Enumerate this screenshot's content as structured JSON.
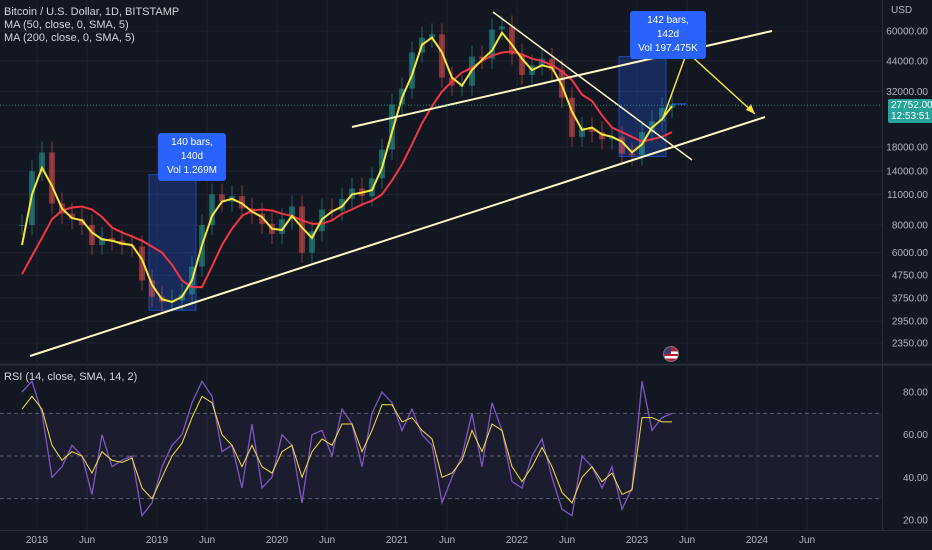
{
  "header": {
    "title": "Bitcoin / U.S. Dollar, 1D, BITSTAMP",
    "ma50": "MA (50, close, 0, SMA, 5)",
    "ma200": "MA (200, close, 0, SMA, 5)",
    "rsi": "RSI (14, close, SMA, 14, 2)"
  },
  "axis": {
    "currency": "USD",
    "price_ticks": [
      "60000.00",
      "44000.00",
      "32000.00",
      "18000.00",
      "14000.00",
      "11000.00",
      "8000.00",
      "6000.00",
      "4750.00",
      "3750.00",
      "2950.00",
      "2350.00"
    ],
    "rsi_ticks": [
      "80.00",
      "60.00",
      "40.00",
      "20.00"
    ],
    "time_ticks": [
      "2018",
      "Jun",
      "2019",
      "Jun",
      "2020",
      "Jun",
      "2021",
      "Jun",
      "2022",
      "Jun",
      "2023",
      "Jun",
      "2024",
      "Jun"
    ]
  },
  "badges": [
    {
      "bars": "140 bars, 140d",
      "vol": "Vol 1.269M"
    },
    {
      "bars": "142 bars, 142d",
      "vol": "Vol 197.475K"
    }
  ],
  "price_tag": {
    "price": "27752.00",
    "countdown": "12:53:51",
    "last_bg": "#26a69a"
  },
  "colors": {
    "background": "#131722",
    "candle_up": "#26a69a",
    "candle_down": "#ef5350",
    "ma50": "#f7e53b",
    "ma200": "#f23645",
    "trendline": "#fff8c4",
    "range_box": "#2962ff",
    "rsi_line": "#7e57c2",
    "rsi_ma": "#f7e53b"
  },
  "chart_data": [
    {
      "type": "line",
      "title": "Bitcoin / U.S. Dollar, 1D, BITSTAMP",
      "y_scale": "log",
      "ylim": [
        2000,
        80000
      ],
      "x": [
        "2017-11",
        "2017-12",
        "2018-01",
        "2018-02",
        "2018-03",
        "2018-04",
        "2018-05",
        "2018-06",
        "2018-07",
        "2018-08",
        "2018-09",
        "2018-10",
        "2018-11",
        "2018-12",
        "2019-01",
        "2019-02",
        "2019-03",
        "2019-04",
        "2019-05",
        "2019-06",
        "2019-07",
        "2019-08",
        "2019-09",
        "2019-10",
        "2019-11",
        "2019-12",
        "2020-01",
        "2020-02",
        "2020-03",
        "2020-04",
        "2020-05",
        "2020-06",
        "2020-07",
        "2020-08",
        "2020-09",
        "2020-10",
        "2020-11",
        "2020-12",
        "2021-01",
        "2021-02",
        "2021-03",
        "2021-04",
        "2021-05",
        "2021-06",
        "2021-07",
        "2021-08",
        "2021-09",
        "2021-10",
        "2021-11",
        "2021-12",
        "2022-01",
        "2022-02",
        "2022-03",
        "2022-04",
        "2022-05",
        "2022-06",
        "2022-07",
        "2022-08",
        "2022-09",
        "2022-10",
        "2022-11",
        "2022-12",
        "2023-01",
        "2023-02",
        "2023-03",
        "2023-04"
      ],
      "series": [
        {
          "name": "Bitcoin / U.S. Dollar",
          "values": [
            8000,
            14000,
            17000,
            10000,
            9000,
            8500,
            8000,
            6500,
            7000,
            6800,
            6500,
            6400,
            4500,
            3800,
            3600,
            3650,
            3900,
            5200,
            8000,
            11000,
            10200,
            10800,
            9500,
            9000,
            8100,
            7300,
            8500,
            9700,
            6000,
            7500,
            9400,
            9300,
            10500,
            11700,
            10800,
            13000,
            17500,
            28000,
            33000,
            48000,
            56000,
            58000,
            37000,
            34000,
            34000,
            46000,
            45000,
            61000,
            63000,
            47000,
            38000,
            42000,
            45000,
            40000,
            30000,
            20000,
            22000,
            21000,
            19500,
            20000,
            16800,
            16500,
            21000,
            23500,
            27000,
            28000
          ]
        },
        {
          "name": "MA (50, close, 0, SMA, 5)",
          "values": [
            6500,
            11000,
            14500,
            12000,
            9500,
            8600,
            8400,
            7400,
            6900,
            6800,
            6600,
            6500,
            5600,
            4300,
            3700,
            3600,
            3800,
            4500,
            6500,
            8800,
            10200,
            10500,
            10000,
            9200,
            8700,
            7700,
            7600,
            8800,
            7800,
            7000,
            8500,
            9200,
            9700,
            11000,
            11200,
            11500,
            14500,
            21000,
            30000,
            38000,
            52000,
            56000,
            48000,
            37000,
            34000,
            40000,
            44500,
            49000,
            59000,
            52000,
            45000,
            40000,
            42000,
            41000,
            34000,
            26000,
            21500,
            22000,
            20500,
            20000,
            19000,
            17000,
            18500,
            22000,
            24000,
            27500
          ]
        },
        {
          "name": "MA (200, close, 0, SMA, 5)",
          "values": [
            4800,
            5800,
            7000,
            8500,
            9300,
            9600,
            9700,
            9400,
            8700,
            7800,
            7400,
            7100,
            6800,
            6400,
            6000,
            5300,
            4500,
            4200,
            4200,
            5200,
            6500,
            7700,
            8800,
            9300,
            9400,
            9300,
            9000,
            8800,
            8400,
            8100,
            8100,
            8400,
            9000,
            9400,
            9900,
            10300,
            11000,
            12700,
            15000,
            18500,
            23000,
            27500,
            32000,
            35500,
            39000,
            41000,
            44000,
            46500,
            48000,
            48500,
            47000,
            45000,
            44000,
            42000,
            39500,
            36000,
            31000,
            29000,
            25000,
            22000,
            21000,
            20000,
            19000,
            19500,
            20000,
            21000
          ]
        }
      ]
    },
    {
      "type": "line",
      "title": "RSI (14, close, SMA, 14, 2)",
      "ylim": [
        15,
        95
      ],
      "x": [
        "2017-11",
        "2017-12",
        "2018-01",
        "2018-02",
        "2018-03",
        "2018-04",
        "2018-05",
        "2018-06",
        "2018-07",
        "2018-08",
        "2018-09",
        "2018-10",
        "2018-11",
        "2018-12",
        "2019-01",
        "2019-02",
        "2019-03",
        "2019-04",
        "2019-05",
        "2019-06",
        "2019-07",
        "2019-08",
        "2019-09",
        "2019-10",
        "2019-11",
        "2019-12",
        "2020-01",
        "2020-02",
        "2020-03",
        "2020-04",
        "2020-05",
        "2020-06",
        "2020-07",
        "2020-08",
        "2020-09",
        "2020-10",
        "2020-11",
        "2020-12",
        "2021-01",
        "2021-02",
        "2021-03",
        "2021-04",
        "2021-05",
        "2021-06",
        "2021-07",
        "2021-08",
        "2021-09",
        "2021-10",
        "2021-11",
        "2021-12",
        "2022-01",
        "2022-02",
        "2022-03",
        "2022-04",
        "2022-05",
        "2022-06",
        "2022-07",
        "2022-08",
        "2022-09",
        "2022-10",
        "2022-11",
        "2022-12",
        "2023-01",
        "2023-02",
        "2023-03",
        "2023-04"
      ],
      "series": [
        {
          "name": "RSI",
          "values": [
            80,
            85,
            70,
            40,
            45,
            55,
            50,
            32,
            60,
            45,
            48,
            50,
            22,
            28,
            45,
            55,
            60,
            75,
            85,
            78,
            52,
            55,
            35,
            65,
            35,
            40,
            60,
            55,
            28,
            60,
            62,
            50,
            72,
            65,
            45,
            70,
            80,
            75,
            62,
            72,
            60,
            55,
            28,
            40,
            50,
            70,
            45,
            75,
            62,
            38,
            35,
            50,
            58,
            40,
            25,
            22,
            50,
            45,
            35,
            45,
            25,
            35,
            85,
            62,
            68,
            70
          ]
        },
        {
          "name": "RSI MA",
          "values": [
            72,
            78,
            72,
            55,
            48,
            52,
            50,
            42,
            52,
            48,
            47,
            49,
            35,
            30,
            40,
            50,
            56,
            68,
            78,
            75,
            60,
            55,
            45,
            55,
            45,
            42,
            52,
            55,
            40,
            52,
            58,
            55,
            65,
            65,
            52,
            62,
            74,
            74,
            66,
            68,
            62,
            58,
            40,
            42,
            48,
            62,
            52,
            65,
            62,
            45,
            38,
            45,
            54,
            45,
            33,
            28,
            40,
            45,
            38,
            42,
            32,
            34,
            68,
            68,
            66,
            66
          ]
        }
      ],
      "levels": [
        70,
        50,
        30
      ]
    }
  ]
}
